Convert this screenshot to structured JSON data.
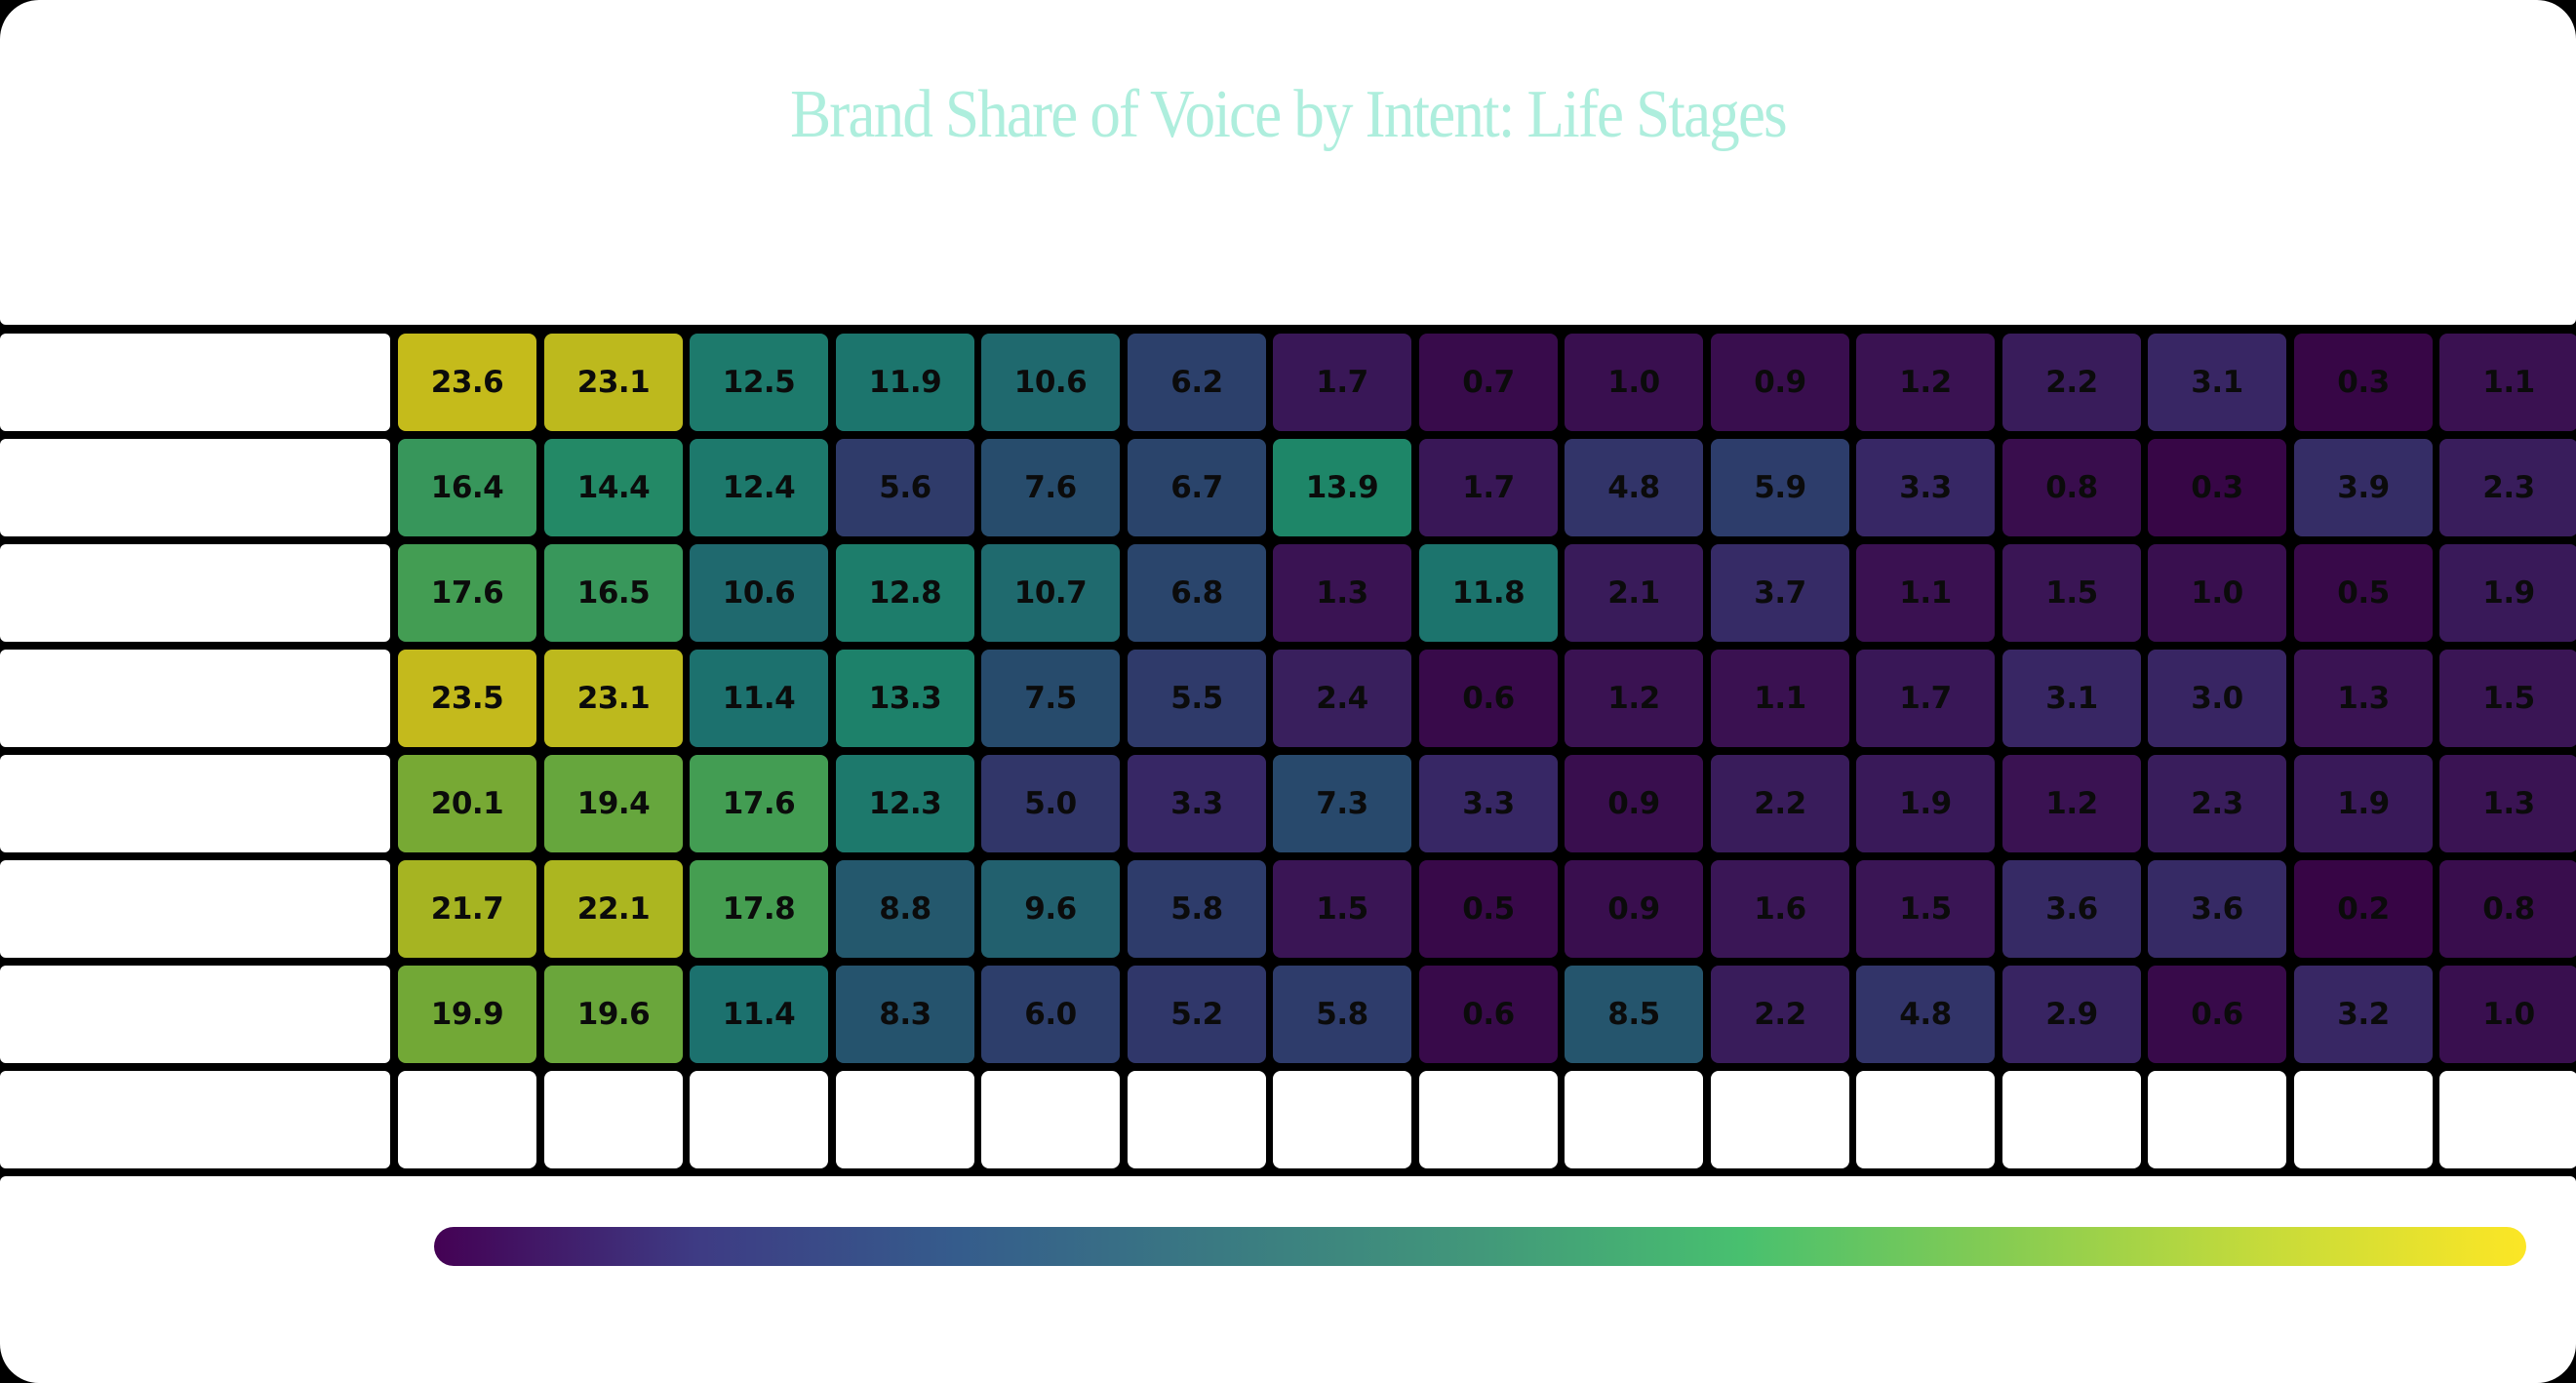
{
  "title": "Brand Share of Voice by Intent: Life Stages",
  "chart_data": {
    "type": "heatmap",
    "title": "Brand Share of Voice by Intent: Life Stages",
    "xlabel": "",
    "ylabel": "",
    "row_labels": [
      "",
      "",
      "",
      "",
      "",
      "",
      ""
    ],
    "column_labels": [
      "",
      "",
      "",
      "",
      "",
      "",
      "",
      "",
      "",
      "",
      "",
      "",
      "",
      "",
      ""
    ],
    "values": [
      [
        23.6,
        23.1,
        12.5,
        11.9,
        10.6,
        6.2,
        1.7,
        0.7,
        1.0,
        0.9,
        1.2,
        2.2,
        3.1,
        0.3,
        1.1
      ],
      [
        16.4,
        14.4,
        12.4,
        5.6,
        7.6,
        6.7,
        13.9,
        1.7,
        4.8,
        5.9,
        3.3,
        0.8,
        0.3,
        3.9,
        2.3
      ],
      [
        17.6,
        16.5,
        10.6,
        12.8,
        10.7,
        6.8,
        1.3,
        11.8,
        2.1,
        3.7,
        1.1,
        1.5,
        1.0,
        0.5,
        1.9
      ],
      [
        23.5,
        23.1,
        11.4,
        13.3,
        7.5,
        5.5,
        2.4,
        0.6,
        1.2,
        1.1,
        1.7,
        3.1,
        3.0,
        1.3,
        1.5
      ],
      [
        20.1,
        19.4,
        17.6,
        12.3,
        5.0,
        3.3,
        7.3,
        3.3,
        0.9,
        2.2,
        1.9,
        1.2,
        2.3,
        1.9,
        1.3
      ],
      [
        21.7,
        22.1,
        17.8,
        8.8,
        9.6,
        5.8,
        1.5,
        0.5,
        0.9,
        1.6,
        1.5,
        3.6,
        3.6,
        0.2,
        0.8
      ],
      [
        19.9,
        19.6,
        11.4,
        8.3,
        6.0,
        5.2,
        5.8,
        0.6,
        8.5,
        2.2,
        4.8,
        2.9,
        0.6,
        3.2,
        1.0
      ]
    ],
    "colormap": "viridis",
    "value_range": [
      0,
      24
    ],
    "colorbar": {
      "position": "bottom",
      "tick_labels": []
    },
    "grid": false,
    "legend_position": "bottom"
  },
  "colors": {
    "title": "#aeeedd",
    "background": "#000000",
    "card": "#ffffff",
    "colorbar_stops": [
      "#440154",
      "#3e3b84",
      "#355c8c",
      "#3a7a82",
      "#42987a",
      "#48c06f",
      "#86cc52",
      "#c6db3a",
      "#fce625"
    ]
  }
}
